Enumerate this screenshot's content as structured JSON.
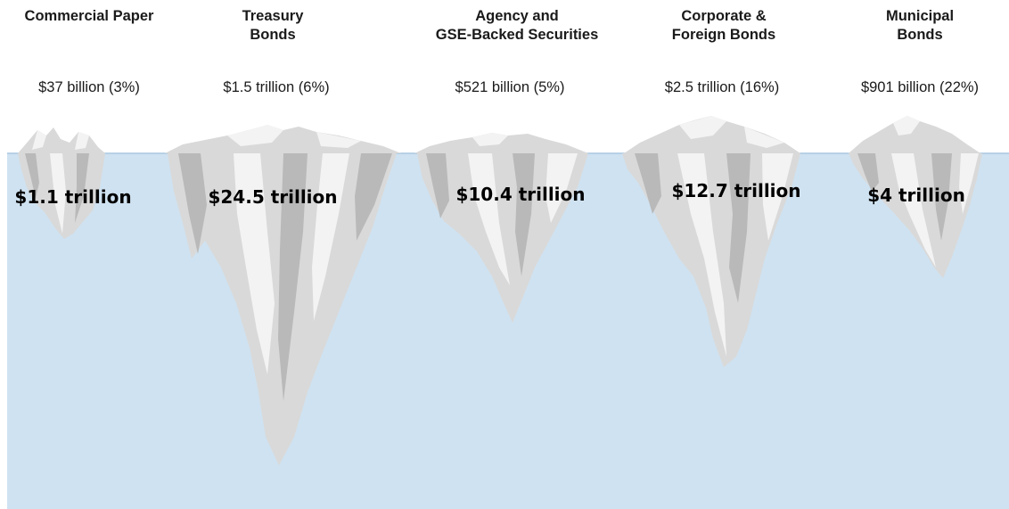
{
  "colors": {
    "water": "#cfe2f1",
    "waterline": "#a9c7e0",
    "ice_light": "#f3f3f3",
    "ice_mid": "#d9d9d9",
    "ice_dark": "#b9b9b9"
  },
  "categories": [
    {
      "title_lines": [
        "Commercial Paper"
      ],
      "above_water": "$37 billion (3%)",
      "below_water": "$1.1 trillion"
    },
    {
      "title_lines": [
        "Treasury",
        "Bonds"
      ],
      "above_water": "$1.5 trillion (6%)",
      "below_water": "$24.5 trillion"
    },
    {
      "title_lines": [
        "Agency and",
        "GSE-Backed Securities"
      ],
      "above_water": "$521 billion (5%)",
      "below_water": "$10.4 trillion"
    },
    {
      "title_lines": [
        "Corporate &",
        "Foreign Bonds"
      ],
      "above_water": "$2.5 trillion (16%)",
      "below_water": "$12.7 trillion"
    },
    {
      "title_lines": [
        "Municipal",
        "Bonds"
      ],
      "above_water": "$901 billion (22%)",
      "below_water": "$4 trillion"
    }
  ]
}
